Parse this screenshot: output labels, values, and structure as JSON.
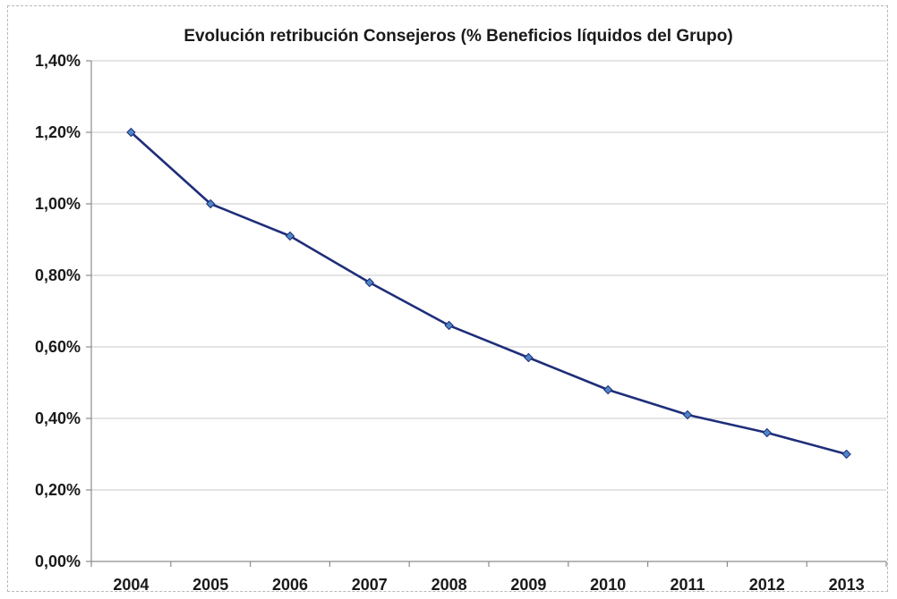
{
  "chart_data": {
    "type": "line",
    "title": "Evolución retribución Consejeros (% Beneficios líquidos del Grupo)",
    "xlabel": "",
    "ylabel": "",
    "categories": [
      "2004",
      "2005",
      "2006",
      "2007",
      "2008",
      "2009",
      "2010",
      "2011",
      "2012",
      "2013"
    ],
    "series": [
      {
        "values": [
          1.2,
          1.0,
          0.91,
          0.78,
          0.66,
          0.57,
          0.48,
          0.41,
          0.36,
          0.3
        ],
        "color": "#1f2e7a",
        "marker_color": "#4f86c6",
        "marker": "diamond"
      }
    ],
    "ylim": [
      0,
      1.4
    ],
    "y_ticks": [
      0,
      0.2,
      0.4,
      0.6,
      0.8,
      1.0,
      1.2,
      1.4
    ],
    "y_tick_labels": [
      "0,00%",
      "0,20%",
      "0,40%",
      "0,60%",
      "0,80%",
      "1,00%",
      "1,20%",
      "1,40%"
    ],
    "grid": true,
    "legend": "none"
  }
}
